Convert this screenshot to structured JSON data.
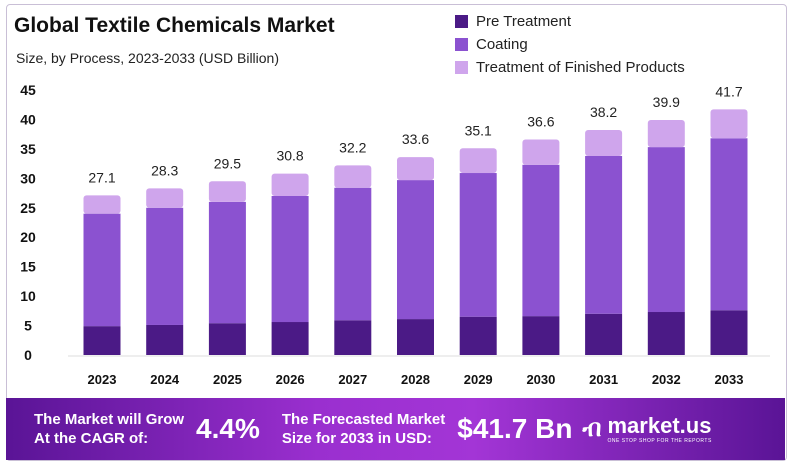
{
  "title": "Global Textile Chemicals Market",
  "subtitle": "Size, by Process, 2023-2033 (USD Billion)",
  "colors": {
    "pre": "#4b1a86",
    "coating": "#8b52d0",
    "finished": "#cfa5ec",
    "footer": "#9a2fcf"
  },
  "chart_data": {
    "type": "bar",
    "stacked": true,
    "categories": [
      "2023",
      "2024",
      "2025",
      "2026",
      "2027",
      "2028",
      "2029",
      "2030",
      "2031",
      "2032",
      "2033"
    ],
    "series": [
      {
        "name": "Pre Treatment",
        "values": [
          4.9,
          5.1,
          5.4,
          5.6,
          5.9,
          6.1,
          6.5,
          6.6,
          7.0,
          7.3,
          7.6
        ]
      },
      {
        "name": "Coating",
        "values": [
          19.1,
          19.9,
          20.6,
          21.4,
          22.5,
          23.6,
          24.4,
          25.7,
          26.8,
          28.0,
          29.2
        ]
      },
      {
        "name": "Treatment of Finished Products",
        "values": [
          3.1,
          3.3,
          3.5,
          3.8,
          3.8,
          3.9,
          4.2,
          4.3,
          4.4,
          4.6,
          4.9
        ]
      }
    ],
    "totals": [
      "27.1",
      "28.3",
      "29.5",
      "30.8",
      "32.2",
      "33.6",
      "35.1",
      "36.6",
      "38.2",
      "39.9",
      "41.7"
    ],
    "yticks": [
      "0",
      "5",
      "10",
      "15",
      "20",
      "25",
      "30",
      "35",
      "40",
      "45"
    ],
    "ylim": [
      0,
      45
    ],
    "grid": false,
    "legend_position": "top-right"
  },
  "footer": {
    "cagr_label_1": "The Market will Grow",
    "cagr_label_2": "At the CAGR of:",
    "cagr_value": "4.4%",
    "size_label_1": "The Forecasted Market",
    "size_label_2": "Size for 2033 in USD:",
    "size_value": "$41.7 Bn",
    "brand": "market.us",
    "brand_tagline": "ONE STOP SHOP FOR THE REPORTS"
  }
}
